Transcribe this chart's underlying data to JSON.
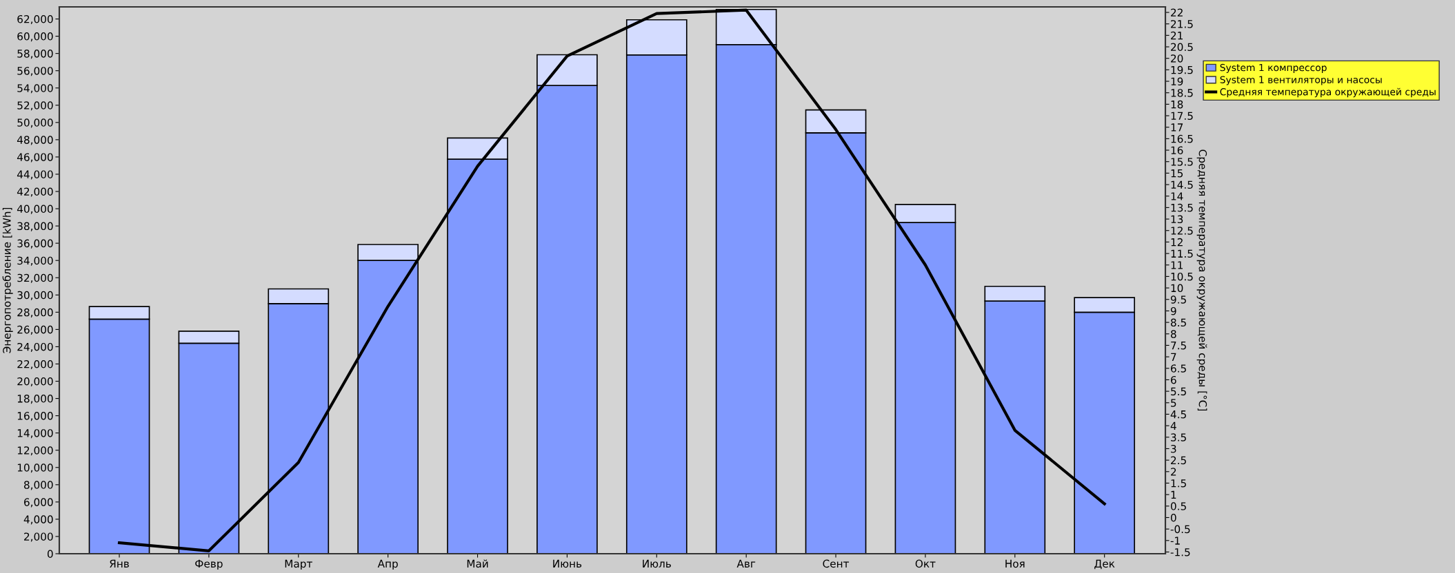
{
  "chart_data": {
    "type": "bar",
    "stacked": true,
    "categories": [
      "Янв",
      "Февр",
      "Март",
      "Апр",
      "Май",
      "Июнь",
      "Июль",
      "Авг",
      "Сент",
      "Окт",
      "Ноя",
      "Дек"
    ],
    "series": [
      {
        "name": "System 1 компрессор",
        "color": "#8099ff",
        "values": [
          27200,
          24400,
          29000,
          34000,
          45750,
          54300,
          57830,
          59030,
          48800,
          38400,
          29300,
          28000
        ]
      },
      {
        "name": "System 1 вентиляторы и насосы",
        "color": "#d4dcff",
        "values": [
          1450,
          1400,
          1700,
          1850,
          2450,
          3550,
          4070,
          4070,
          2650,
          2100,
          1700,
          1700
        ]
      },
      {
        "name": "Средняя температура окружающей среды",
        "type": "line",
        "axis": "y2",
        "color": "#000000",
        "values": [
          -1.1,
          -1.45,
          2.4,
          9.2,
          15.3,
          20.1,
          21.95,
          22.1,
          16.9,
          11.0,
          3.8,
          0.6
        ]
      }
    ],
    "ylabel": "Энергопотребление [kWh]",
    "y2label": "Средняя температура окружающей среды [°C]",
    "ylim": [
      0,
      63400
    ],
    "yticks": [
      {
        "value": 0,
        "label": "0"
      },
      {
        "value": 2000,
        "label": "2,000"
      },
      {
        "value": 4000,
        "label": "4,000"
      },
      {
        "value": 6000,
        "label": "6,000"
      },
      {
        "value": 8000,
        "label": "8,000"
      },
      {
        "value": 10000,
        "label": "10,000"
      },
      {
        "value": 12000,
        "label": "12,000"
      },
      {
        "value": 14000,
        "label": "14,000"
      },
      {
        "value": 16000,
        "label": "16,000"
      },
      {
        "value": 18000,
        "label": "18,000"
      },
      {
        "value": 20000,
        "label": "20,000"
      },
      {
        "value": 22000,
        "label": "22,000"
      },
      {
        "value": 24000,
        "label": "24,000"
      },
      {
        "value": 26000,
        "label": "26,000"
      },
      {
        "value": 28000,
        "label": "28,000"
      },
      {
        "value": 30000,
        "label": "30,000"
      },
      {
        "value": 32000,
        "label": "32,000"
      },
      {
        "value": 34000,
        "label": "34,000"
      },
      {
        "value": 36000,
        "label": "36,000"
      },
      {
        "value": 38000,
        "label": "38,000"
      },
      {
        "value": 40000,
        "label": "40,000"
      },
      {
        "value": 42000,
        "label": "42,000"
      },
      {
        "value": 44000,
        "label": "44,000"
      },
      {
        "value": 46000,
        "label": "46,000"
      },
      {
        "value": 48000,
        "label": "48,000"
      },
      {
        "value": 50000,
        "label": "50,000"
      },
      {
        "value": 52000,
        "label": "52,000"
      },
      {
        "value": 54000,
        "label": "54,000"
      },
      {
        "value": 56000,
        "label": "56,000"
      },
      {
        "value": 58000,
        "label": "58,000"
      },
      {
        "value": 60000,
        "label": "60,000"
      },
      {
        "value": 62000,
        "label": "62,000"
      }
    ],
    "y2lim": [
      -1.575,
      22.24
    ],
    "y2ticks": [
      -1.5,
      -1,
      -0.5,
      0,
      0.5,
      1,
      1.5,
      2,
      2.5,
      3,
      3.5,
      4,
      4.5,
      5,
      5.5,
      6,
      6.5,
      7,
      7.5,
      8,
      8.5,
      9,
      9.5,
      10,
      10.5,
      11,
      11.5,
      12,
      12.5,
      13,
      13.5,
      14,
      14.5,
      15,
      15.5,
      16,
      16.5,
      17,
      17.5,
      18,
      18.5,
      19,
      19.5,
      20,
      20.5,
      21,
      21.5,
      22
    ],
    "legend": "top right",
    "grid": false
  }
}
